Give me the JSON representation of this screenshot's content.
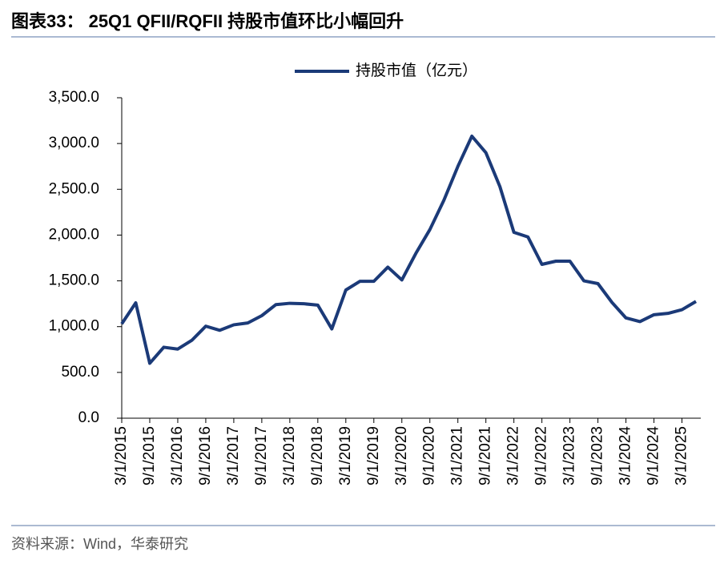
{
  "title": "图表33： 25Q1 QFII/RQFII 持股市值环比小幅回升",
  "source": "资料来源：Wind，华泰研究",
  "chart_data": {
    "type": "line",
    "categories": [
      "3/1/2015",
      null,
      "9/1/2015",
      null,
      "3/1/2016",
      null,
      "9/1/2016",
      null,
      "3/1/2017",
      null,
      "9/1/2017",
      null,
      "3/1/2018",
      null,
      "9/1/2018",
      null,
      "3/1/2019",
      null,
      "9/1/2019",
      null,
      "3/1/2020",
      null,
      "9/1/2020",
      null,
      "3/1/2021",
      null,
      "9/1/2021",
      null,
      "3/1/2022",
      null,
      "9/1/2022",
      null,
      "3/1/2023",
      null,
      "9/1/2023",
      null,
      "3/1/2024",
      null,
      "9/1/2024",
      null,
      "3/1/2025",
      null
    ],
    "series": [
      {
        "name": "持股市值（亿元）",
        "color": "#1b3a78",
        "values": [
          1030,
          1260,
          600,
          775,
          755,
          850,
          1005,
          960,
          1020,
          1040,
          1120,
          1240,
          1255,
          1250,
          1235,
          975,
          1400,
          1495,
          1495,
          1650,
          1510,
          1800,
          2060,
          2380,
          2750,
          3080,
          2900,
          2530,
          2030,
          1980,
          1680,
          1715,
          1715,
          1500,
          1470,
          1265,
          1095,
          1055,
          1130,
          1145,
          1185,
          1275
        ]
      }
    ],
    "ylim": [
      0,
      3500
    ],
    "yticks": [
      {
        "value": 0,
        "label": "0.0"
      },
      {
        "value": 500,
        "label": "500.0"
      },
      {
        "value": 1000,
        "label": "1,000.0"
      },
      {
        "value": 1500,
        "label": "1,500.0"
      },
      {
        "value": 2000,
        "label": "2,000.0"
      },
      {
        "value": 2500,
        "label": "2,500.0"
      },
      {
        "value": 3000,
        "label": "3,000.0"
      },
      {
        "value": 3500,
        "label": "3,500.0"
      }
    ],
    "legend": "top"
  }
}
